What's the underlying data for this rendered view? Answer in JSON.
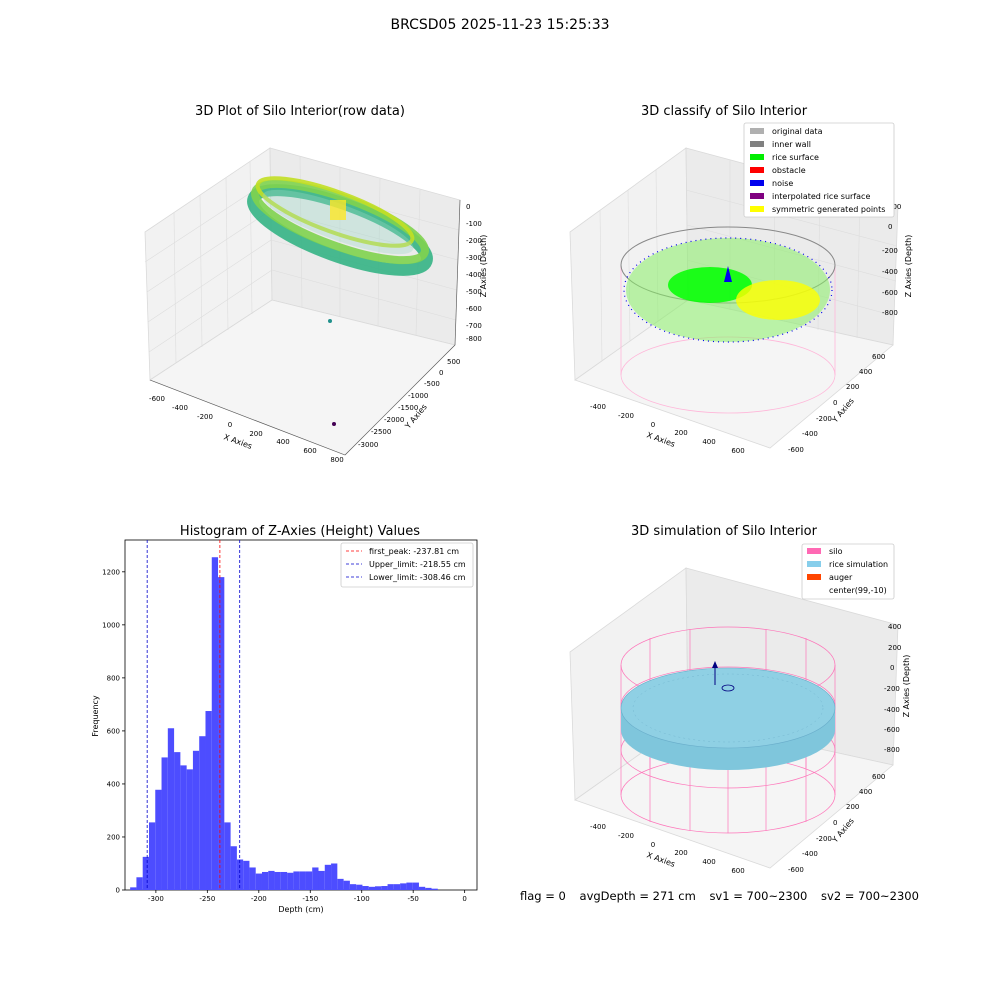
{
  "suptitle": "BRCSD05 2025-11-23 15:25:33",
  "panel1": {
    "title": "3D Plot of Silo Interior(row data)",
    "xlabel": "X Axies",
    "ylabel": "Y Axies",
    "zlabel": "Z Axies (Depth)",
    "xticks": [
      "-600",
      "-400",
      "-200",
      "0",
      "200",
      "400",
      "600",
      "800"
    ],
    "yticks": [
      "500",
      "0",
      "-500",
      "-1000",
      "-1500",
      "-2000",
      "-2500",
      "-3000"
    ],
    "zticks": [
      "0",
      "-100",
      "-200",
      "-300",
      "-400",
      "-500",
      "-600",
      "-700",
      "-800"
    ]
  },
  "panel2": {
    "title": "3D classify of Silo Interior",
    "xlabel": "X Axies",
    "ylabel": "Y Axies",
    "zlabel": "Z Axies (Depth)",
    "xticks": [
      "-400",
      "-200",
      "0",
      "200",
      "400",
      "600"
    ],
    "yticks": [
      "600",
      "400",
      "200",
      "0",
      "-200",
      "-400",
      "-600"
    ],
    "zticks": [
      "200",
      "0",
      "-200",
      "-400",
      "-600",
      "-800"
    ],
    "legend": [
      {
        "label": "original data",
        "color": "#b0b0b0"
      },
      {
        "label": "inner wall",
        "color": "#808080"
      },
      {
        "label": "rice surface",
        "color": "#00ee00"
      },
      {
        "label": "obstacle",
        "color": "#ff0000"
      },
      {
        "label": "noise",
        "color": "#0000ee"
      },
      {
        "label": "interpolated rice surface",
        "color": "#800080"
      },
      {
        "label": "symmetric generated points",
        "color": "#ffff00"
      }
    ]
  },
  "panel3": {
    "title": "Histogram of Z-Axies (Height) Values",
    "xlabel": "Depth (cm)",
    "ylabel": "Frequency",
    "xticks": [
      "-300",
      "-250",
      "-200",
      "-150",
      "-100",
      "-50",
      "0"
    ],
    "yticks": [
      "0",
      "200",
      "400",
      "600",
      "800",
      "1000",
      "1200"
    ],
    "legend": [
      {
        "label": "first_peak: -237.81 cm",
        "color": "#ff0000"
      },
      {
        "label": "Upper_limit: -218.55 cm",
        "color": "#0000cc"
      },
      {
        "label": "Lower_limit: -308.46 cm",
        "color": "#0000cc"
      }
    ]
  },
  "panel4": {
    "title": "3D simulation of Silo Interior",
    "xlabel": "X Axies",
    "ylabel": "Y Axies",
    "zlabel": "Z Axies (Depth)",
    "xticks": [
      "-400",
      "-200",
      "0",
      "200",
      "400",
      "600"
    ],
    "yticks": [
      "600",
      "400",
      "200",
      "0",
      "-200",
      "-400",
      "-600"
    ],
    "zticks": [
      "400",
      "200",
      "0",
      "-200",
      "-400",
      "-600",
      "-800"
    ],
    "legend": [
      {
        "label": "silo",
        "color": "#ff69b4"
      },
      {
        "label": "rice simulation",
        "color": "#87ceeb"
      },
      {
        "label": "auger",
        "color": "#ff4500"
      },
      {
        "label": "center(99,-10)",
        "color": "#ffffff"
      }
    ]
  },
  "status": {
    "flag": "flag = 0",
    "avg": "avgDepth = 271 cm",
    "sv1": "sv1 = 700~2300",
    "sv2": "sv2 = 700~2300"
  },
  "chart_data": [
    {
      "type": "histogram",
      "title": "Histogram of Z-Axies (Height) Values",
      "xlabel": "Depth (cm)",
      "ylabel": "Frequency",
      "xlim": [
        -330,
        12
      ],
      "ylim": [
        0,
        1320
      ],
      "bin_start": -325,
      "bin_width": 6.1,
      "values": [
        10,
        48,
        125,
        255,
        378,
        500,
        610,
        520,
        470,
        455,
        525,
        580,
        675,
        1255,
        1180,
        255,
        165,
        115,
        110,
        85,
        62,
        68,
        72,
        68,
        68,
        65,
        70,
        70,
        70,
        85,
        72,
        95,
        100,
        42,
        35,
        22,
        20,
        15,
        12,
        14,
        15,
        22,
        22,
        25,
        28,
        28,
        12,
        8,
        5
      ],
      "vlines": [
        {
          "label": "first_peak: -237.81 cm",
          "x": -237.81,
          "color": "#ff0000"
        },
        {
          "label": "Upper_limit: -218.55 cm",
          "x": -218.55,
          "color": "#0000cc"
        },
        {
          "label": "Lower_limit: -308.46 cm",
          "x": -308.46,
          "color": "#0000cc"
        }
      ],
      "legend_position": "top-right",
      "bar_color": "#4d4dff"
    }
  ]
}
